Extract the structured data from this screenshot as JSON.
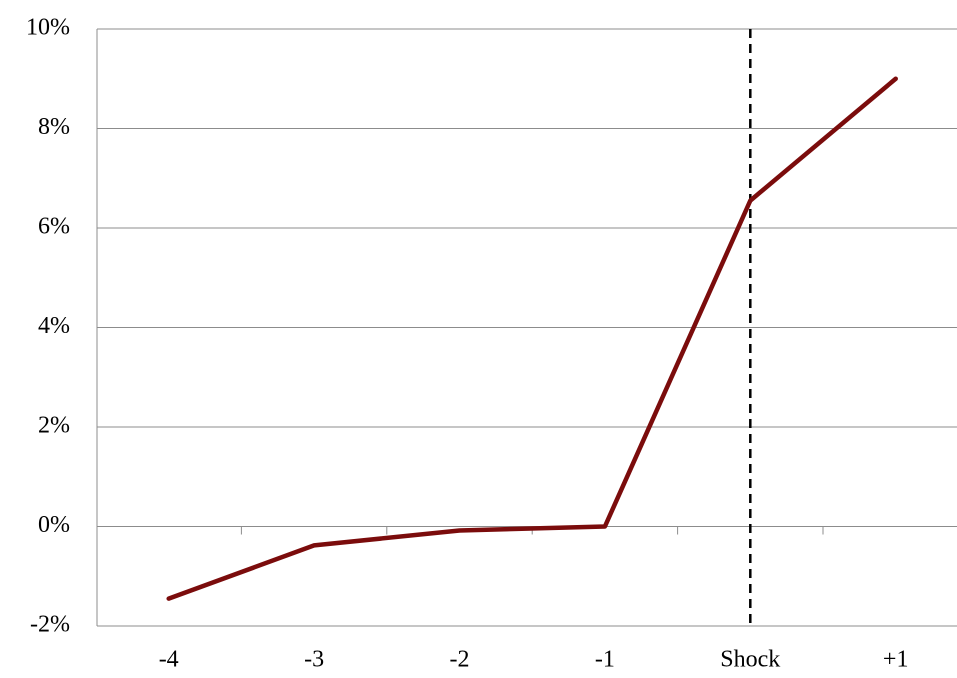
{
  "chart_data": {
    "type": "line",
    "categories": [
      "-4",
      "-3",
      "-2",
      "-1",
      "Shock",
      "+1"
    ],
    "series": [
      {
        "color": "#7b0c0c",
        "values": [
          -1.45,
          -0.38,
          -0.08,
          0,
          6.55,
          9.0
        ]
      }
    ],
    "ylim": [
      -2,
      10
    ],
    "yticks": [
      {
        "value": -2,
        "label": "-2%"
      },
      {
        "value": 0,
        "label": "0%"
      },
      {
        "value": 2,
        "label": "2%"
      },
      {
        "value": 4,
        "label": "4%"
      },
      {
        "value": 6,
        "label": "6%"
      },
      {
        "value": 8,
        "label": "8%"
      },
      {
        "value": 10,
        "label": "10%"
      }
    ],
    "grid": true,
    "vline_at": "Shock"
  }
}
